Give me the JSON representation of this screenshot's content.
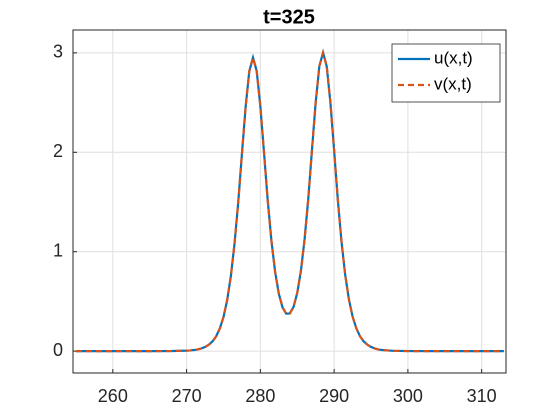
{
  "chart_data": {
    "type": "line",
    "title": "t=325",
    "x": [
      255,
      265,
      268,
      270,
      270.5,
      271,
      271.5,
      272,
      272.5,
      273,
      273.5,
      274,
      274.5,
      275,
      275.5,
      276,
      276.5,
      277,
      277.5,
      278,
      278.5,
      279,
      279.5,
      280,
      280.5,
      281,
      281.5,
      282,
      282.5,
      283,
      283.5,
      284,
      284.5,
      285,
      285.5,
      286,
      286.5,
      287,
      287.5,
      288,
      288.5,
      289,
      289.5,
      290,
      290.5,
      291,
      291.5,
      292,
      292.5,
      293,
      293.5,
      294,
      294.5,
      295,
      295.5,
      296,
      296.5,
      297,
      298,
      300,
      305,
      313
    ],
    "series": [
      {
        "name": "u(x,t)",
        "color": "#0072BD",
        "dash": "solid",
        "values": [
          0,
          0.0001,
          0.001,
          0.005,
          0.007,
          0.011,
          0.017,
          0.027,
          0.041,
          0.064,
          0.097,
          0.148,
          0.227,
          0.342,
          0.513,
          0.755,
          1.083,
          1.496,
          1.983,
          2.455,
          2.816,
          2.953,
          2.819,
          2.462,
          1.993,
          1.513,
          1.11,
          0.797,
          0.578,
          0.441,
          0.377,
          0.379,
          0.445,
          0.586,
          0.809,
          1.128,
          1.538,
          2.027,
          2.503,
          2.867,
          3.003,
          2.864,
          2.497,
          2.017,
          1.522,
          1.101,
          0.768,
          0.522,
          0.348,
          0.231,
          0.15,
          0.099,
          0.065,
          0.042,
          0.027,
          0.017,
          0.011,
          0.008,
          0.003,
          0.0005,
          0,
          0
        ]
      },
      {
        "name": "v(x,t)",
        "color": "#D95319",
        "dash": "dashed",
        "values": [
          0,
          0.0001,
          0.001,
          0.005,
          0.007,
          0.011,
          0.017,
          0.027,
          0.041,
          0.064,
          0.097,
          0.148,
          0.227,
          0.342,
          0.513,
          0.755,
          1.083,
          1.496,
          1.983,
          2.455,
          2.816,
          2.953,
          2.819,
          2.462,
          1.993,
          1.513,
          1.11,
          0.797,
          0.578,
          0.441,
          0.377,
          0.379,
          0.445,
          0.586,
          0.809,
          1.128,
          1.538,
          2.027,
          2.503,
          2.867,
          3.003,
          2.864,
          2.497,
          2.017,
          1.522,
          1.101,
          0.768,
          0.522,
          0.348,
          0.231,
          0.15,
          0.099,
          0.065,
          0.042,
          0.027,
          0.017,
          0.011,
          0.008,
          0.003,
          0.0005,
          0,
          0
        ]
      }
    ],
    "xlim": [
      254.6,
      313.3
    ],
    "xticks": [
      260,
      270,
      280,
      290,
      300,
      310
    ],
    "ylim": [
      -0.22,
      3.23
    ],
    "yticks": [
      0,
      1,
      2,
      3
    ],
    "grid": true,
    "legend": "top-right"
  }
}
